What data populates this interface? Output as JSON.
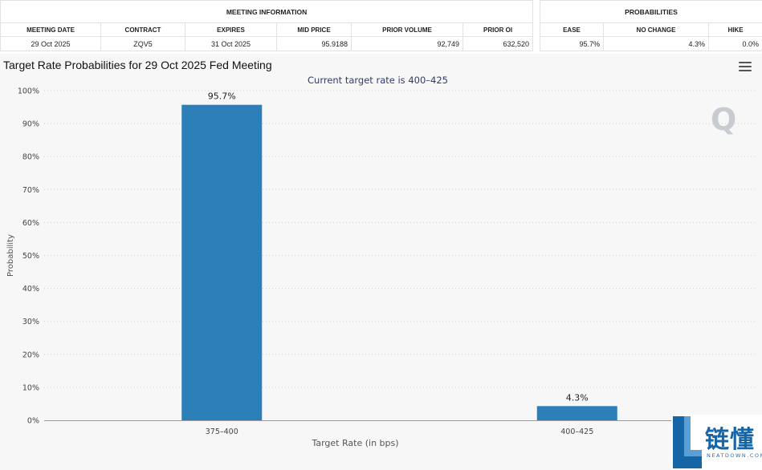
{
  "meeting_info": {
    "group_title": "MEETING INFORMATION",
    "headers": [
      "MEETING DATE",
      "CONTRACT",
      "EXPIRES",
      "MID PRICE",
      "PRIOR VOLUME",
      "PRIOR OI"
    ],
    "values": [
      "29 Oct 2025",
      "ZQV5",
      "31 Oct 2025",
      "95.9188",
      "92,749",
      "632,520"
    ]
  },
  "probabilities": {
    "group_title": "PROBABILITIES",
    "headers": [
      "EASE",
      "NO CHANGE",
      "HIKE"
    ],
    "values": [
      "95.7%",
      "4.3%",
      "0.0%"
    ]
  },
  "chart": {
    "title": "Target Rate Probabilities for 29 Oct 2025 Fed Meeting",
    "watermark": "Q"
  },
  "chart_data": {
    "type": "bar",
    "subtitle": "Current target rate is 400–425",
    "categories": [
      "375–400",
      "400–425"
    ],
    "values": [
      95.7,
      4.3
    ],
    "data_labels": [
      "95.7%",
      "4.3%"
    ],
    "xlabel": "Target Rate (in bps)",
    "ylabel": "Probability",
    "ylim": [
      0,
      100
    ],
    "yticks": [
      0,
      10,
      20,
      30,
      40,
      50,
      60,
      70,
      80,
      90,
      100
    ],
    "ytick_suffix": "%",
    "grid": true,
    "bar_color": "#2c7fb8"
  },
  "logo": {
    "chinese": "链懂",
    "english": "NEATDOWN.COM",
    "color": "#1565a7"
  }
}
